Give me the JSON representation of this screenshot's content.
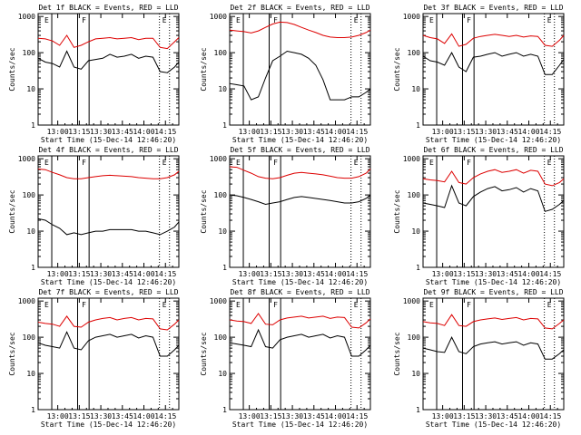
{
  "time_axis": {
    "ticks": [
      "13:00",
      "13:15",
      "13:30",
      "13:45",
      "14:00",
      "14:15"
    ],
    "tick_minutes_after_start": [
      13.67,
      28.67,
      43.67,
      58.67,
      73.67,
      88.67
    ],
    "xlim_minutes_after_start": [
      0,
      98
    ],
    "xlabel": "Start Time (15-Dec-14 12:46:20)"
  },
  "count_axis": {
    "ylabel": "Counts/sec",
    "ticks": [
      "1",
      "10",
      "100",
      "1000"
    ],
    "ylim": [
      1,
      1200
    ],
    "scale": "log"
  },
  "panels": [
    {
      "title": "Det 1f BLACK = Events, RED = LLD",
      "marker_lines": [
        {
          "label": "E",
          "minute": 9.5,
          "style": "solid"
        },
        {
          "label": "",
          "minute": 27.5,
          "style": "solid"
        },
        {
          "label": "F",
          "minute": 35.5,
          "style": "solid"
        },
        {
          "label": "",
          "minute": 84.5,
          "style": "dotted"
        },
        {
          "label": "E",
          "minute": 91.5,
          "style": "dotted"
        }
      ],
      "chart_data": {
        "type": "line",
        "x_points_minutes": [
          0,
          5,
          10,
          15,
          20,
          25,
          30,
          35,
          40,
          45,
          50,
          55,
          60,
          65,
          70,
          75,
          80,
          85,
          90,
          95,
          98
        ],
        "series": [
          {
            "color": "#dd0000",
            "values": [
              250,
              240,
              210,
              160,
              300,
              140,
              160,
              200,
              240,
              250,
              260,
              240,
              250,
              260,
              230,
              250,
              250,
              140,
              130,
              200,
              260
            ]
          },
          {
            "color": "#000000",
            "values": [
              70,
              55,
              50,
              40,
              110,
              40,
              35,
              60,
              65,
              70,
              90,
              75,
              80,
              90,
              70,
              80,
              75,
              30,
              28,
              40,
              55
            ]
          }
        ]
      }
    },
    {
      "title": "Det 2f BLACK = Events, RED = LLD",
      "marker_lines": [
        {
          "label": "E",
          "minute": 9.5,
          "style": "solid"
        },
        {
          "label": "",
          "minute": 27.5,
          "style": "solid"
        },
        {
          "label": "F",
          "minute": 35.5,
          "style": "solid"
        },
        {
          "label": "",
          "minute": 84.5,
          "style": "dotted"
        },
        {
          "label": "E",
          "minute": 91.5,
          "style": "dotted"
        }
      ],
      "chart_data": {
        "type": "line",
        "x_points_minutes": [
          0,
          5,
          10,
          15,
          20,
          25,
          30,
          35,
          40,
          45,
          50,
          55,
          60,
          65,
          70,
          75,
          80,
          85,
          90,
          95,
          98
        ],
        "series": [
          {
            "color": "#dd0000",
            "values": [
              420,
              400,
              380,
              350,
              400,
              500,
              620,
              700,
              680,
              600,
              500,
              420,
              360,
              300,
              270,
              260,
              260,
              270,
              300,
              360,
              420
            ]
          },
          {
            "color": "#000000",
            "values": [
              14,
              13,
              12,
              5,
              6,
              20,
              60,
              80,
              110,
              100,
              90,
              70,
              45,
              18,
              5,
              5,
              5,
              6,
              6,
              8,
              10
            ]
          }
        ]
      }
    },
    {
      "title": "Det 3f BLACK = Events, RED = LLD",
      "marker_lines": [
        {
          "label": "E",
          "minute": 9.5,
          "style": "solid"
        },
        {
          "label": "",
          "minute": 27.5,
          "style": "solid"
        },
        {
          "label": "F",
          "minute": 35.5,
          "style": "solid"
        },
        {
          "label": "",
          "minute": 84.5,
          "style": "dotted"
        },
        {
          "label": "E",
          "minute": 91.5,
          "style": "dotted"
        }
      ],
      "chart_data": {
        "type": "line",
        "x_points_minutes": [
          0,
          5,
          10,
          15,
          20,
          25,
          30,
          35,
          40,
          45,
          50,
          55,
          60,
          65,
          70,
          75,
          80,
          85,
          90,
          95,
          98
        ],
        "series": [
          {
            "color": "#dd0000",
            "values": [
              300,
              260,
              240,
              180,
              330,
              150,
              170,
              250,
              280,
              300,
              320,
              300,
              280,
              300,
              270,
              290,
              280,
              160,
              150,
              220,
              300
            ]
          },
          {
            "color": "#000000",
            "values": [
              80,
              60,
              55,
              45,
              100,
              40,
              30,
              75,
              80,
              90,
              100,
              80,
              90,
              100,
              80,
              90,
              80,
              25,
              25,
              45,
              65
            ]
          }
        ]
      }
    },
    {
      "title": "Det 4f BLACK = Events, RED = LLD",
      "marker_lines": [
        {
          "label": "E",
          "minute": 9.5,
          "style": "solid"
        },
        {
          "label": "",
          "minute": 27.5,
          "style": "solid"
        },
        {
          "label": "F",
          "minute": 35.5,
          "style": "solid"
        },
        {
          "label": "",
          "minute": 84.5,
          "style": "dotted"
        },
        {
          "label": "E",
          "minute": 91.5,
          "style": "dotted"
        }
      ],
      "chart_data": {
        "type": "line",
        "x_points_minutes": [
          0,
          5,
          10,
          15,
          20,
          25,
          30,
          35,
          40,
          45,
          50,
          55,
          60,
          65,
          70,
          75,
          80,
          85,
          90,
          95,
          98
        ],
        "series": [
          {
            "color": "#dd0000",
            "values": [
              520,
              500,
              420,
              360,
              300,
              280,
              280,
              300,
              320,
              340,
              350,
              340,
              330,
              320,
              300,
              290,
              280,
              280,
              300,
              360,
              450
            ]
          },
          {
            "color": "#000000",
            "values": [
              22,
              20,
              15,
              12,
              8,
              9,
              8,
              9,
              10,
              10,
              11,
              11,
              11,
              11,
              10,
              10,
              9,
              8,
              10,
              13,
              18
            ]
          }
        ]
      }
    },
    {
      "title": "Det 5f BLACK = Events, RED = LLD",
      "marker_lines": [
        {
          "label": "E",
          "minute": 9.5,
          "style": "solid"
        },
        {
          "label": "",
          "minute": 27.5,
          "style": "solid"
        },
        {
          "label": "F",
          "minute": 35.5,
          "style": "solid"
        },
        {
          "label": "",
          "minute": 84.5,
          "style": "dotted"
        },
        {
          "label": "E",
          "minute": 91.5,
          "style": "dotted"
        }
      ],
      "chart_data": {
        "type": "line",
        "x_points_minutes": [
          0,
          5,
          10,
          15,
          20,
          25,
          30,
          35,
          40,
          45,
          50,
          55,
          60,
          65,
          70,
          75,
          80,
          85,
          90,
          95,
          98
        ],
        "series": [
          {
            "color": "#dd0000",
            "values": [
              600,
              580,
              480,
              400,
              320,
              290,
              280,
              300,
              350,
              400,
              420,
              400,
              380,
              360,
              330,
              300,
              290,
              290,
              320,
              400,
              520
            ]
          },
          {
            "color": "#000000",
            "values": [
              100,
              95,
              85,
              75,
              65,
              55,
              60,
              65,
              75,
              85,
              90,
              85,
              80,
              75,
              70,
              65,
              60,
              60,
              65,
              80,
              100
            ]
          }
        ]
      }
    },
    {
      "title": "Det 6f BLACK = Events, RED = LLD",
      "marker_lines": [
        {
          "label": "E",
          "minute": 9.5,
          "style": "solid"
        },
        {
          "label": "",
          "minute": 27.5,
          "style": "solid"
        },
        {
          "label": "F",
          "minute": 35.5,
          "style": "solid"
        },
        {
          "label": "",
          "minute": 84.5,
          "style": "dotted"
        },
        {
          "label": "E",
          "minute": 91.5,
          "style": "dotted"
        }
      ],
      "chart_data": {
        "type": "line",
        "x_points_minutes": [
          0,
          5,
          10,
          15,
          20,
          25,
          30,
          35,
          40,
          45,
          50,
          55,
          60,
          65,
          70,
          75,
          80,
          85,
          90,
          95,
          98
        ],
        "series": [
          {
            "color": "#dd0000",
            "values": [
              280,
              260,
              250,
              230,
              450,
              220,
              200,
              300,
              380,
              450,
              500,
              420,
              450,
              500,
              400,
              480,
              450,
              200,
              180,
              220,
              280
            ]
          },
          {
            "color": "#000000",
            "values": [
              60,
              55,
              50,
              45,
              180,
              60,
              50,
              90,
              120,
              150,
              170,
              130,
              140,
              160,
              120,
              150,
              130,
              35,
              40,
              55,
              70
            ]
          }
        ]
      }
    },
    {
      "title": "Det 7f BLACK = Events, RED = LLD",
      "marker_lines": [
        {
          "label": "E",
          "minute": 9.5,
          "style": "solid"
        },
        {
          "label": "",
          "minute": 27.5,
          "style": "solid"
        },
        {
          "label": "F",
          "minute": 35.5,
          "style": "solid"
        },
        {
          "label": "",
          "minute": 84.5,
          "style": "dotted"
        },
        {
          "label": "E",
          "minute": 91.5,
          "style": "dotted"
        }
      ],
      "chart_data": {
        "type": "line",
        "x_points_minutes": [
          0,
          5,
          10,
          15,
          20,
          25,
          30,
          35,
          40,
          45,
          50,
          55,
          60,
          65,
          70,
          75,
          80,
          85,
          90,
          95,
          98
        ],
        "series": [
          {
            "color": "#dd0000",
            "values": [
              260,
              240,
              230,
              200,
              380,
              200,
              190,
              260,
              300,
              330,
              350,
              300,
              330,
              350,
              300,
              330,
              320,
              170,
              160,
              230,
              300
            ]
          },
          {
            "color": "#000000",
            "values": [
              70,
              60,
              55,
              50,
              140,
              50,
              45,
              80,
              100,
              110,
              120,
              100,
              110,
              120,
              95,
              110,
              100,
              30,
              30,
              45,
              60
            ]
          }
        ]
      }
    },
    {
      "title": "Det 8f BLACK = Events, RED = LLD",
      "marker_lines": [
        {
          "label": "E",
          "minute": 9.5,
          "style": "solid"
        },
        {
          "label": "",
          "minute": 27.5,
          "style": "solid"
        },
        {
          "label": "F",
          "minute": 35.5,
          "style": "solid"
        },
        {
          "label": "",
          "minute": 84.5,
          "style": "dotted"
        },
        {
          "label": "E",
          "minute": 91.5,
          "style": "dotted"
        }
      ],
      "chart_data": {
        "type": "line",
        "x_points_minutes": [
          0,
          5,
          10,
          15,
          20,
          25,
          30,
          35,
          40,
          45,
          50,
          55,
          60,
          65,
          70,
          75,
          80,
          85,
          90,
          95,
          98
        ],
        "series": [
          {
            "color": "#dd0000",
            "values": [
              300,
              280,
              270,
              240,
              450,
              230,
              220,
              300,
              340,
              360,
              380,
              340,
              360,
              380,
              330,
              360,
              350,
              190,
              180,
              250,
              320
            ]
          },
          {
            "color": "#000000",
            "values": [
              70,
              65,
              60,
              55,
              160,
              55,
              50,
              85,
              100,
              110,
              120,
              100,
              110,
              120,
              95,
              110,
              100,
              30,
              30,
              45,
              60
            ]
          }
        ]
      }
    },
    {
      "title": "Det 9f BLACK = Events, RED = LLD",
      "marker_lines": [
        {
          "label": "E",
          "minute": 9.5,
          "style": "solid"
        },
        {
          "label": "",
          "minute": 27.5,
          "style": "solid"
        },
        {
          "label": "F",
          "minute": 35.5,
          "style": "solid"
        },
        {
          "label": "",
          "minute": 84.5,
          "style": "dotted"
        },
        {
          "label": "E",
          "minute": 91.5,
          "style": "dotted"
        }
      ],
      "chart_data": {
        "type": "line",
        "x_points_minutes": [
          0,
          5,
          10,
          15,
          20,
          25,
          30,
          35,
          40,
          45,
          50,
          55,
          60,
          65,
          70,
          75,
          80,
          85,
          90,
          95,
          98
        ],
        "series": [
          {
            "color": "#dd0000",
            "values": [
              270,
              250,
              240,
              210,
              420,
              210,
              200,
              270,
              300,
              320,
              340,
              310,
              330,
              350,
              300,
              330,
              320,
              180,
              170,
              240,
              300
            ]
          },
          {
            "color": "#000000",
            "values": [
              50,
              45,
              40,
              38,
              100,
              40,
              35,
              55,
              65,
              70,
              75,
              65,
              70,
              75,
              60,
              70,
              65,
              25,
              25,
              35,
              45
            ]
          }
        ]
      }
    }
  ]
}
